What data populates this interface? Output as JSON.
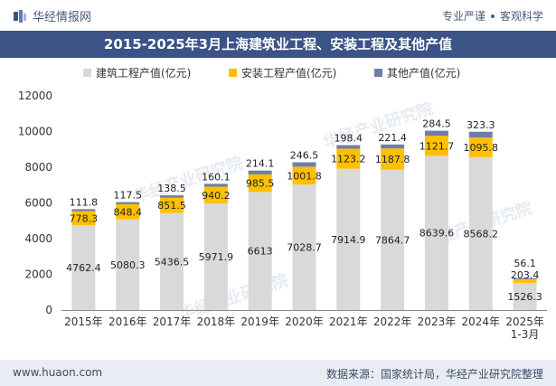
{
  "header": {
    "brand": "华经情报网",
    "tag1": "专业严谨",
    "tag2": "客观科学"
  },
  "colors": {
    "title_bg": "#3b5387",
    "construction": "#d9d9d9",
    "installation": "#ffc000",
    "other": "#6f7ea6"
  },
  "chart_data": {
    "type": "bar",
    "stacked": true,
    "title": "2015-2025年3月上海建筑业工程、安装工程及其他产值",
    "categories": [
      "2015年",
      "2016年",
      "2017年",
      "2018年",
      "2019年",
      "2020年",
      "2021年",
      "2022年",
      "2023年",
      "2024年",
      "2025年\n1-3月"
    ],
    "series": [
      {
        "name": "建筑工程产值(亿元)",
        "values": [
          4762.4,
          5080.3,
          5436.5,
          5971.9,
          6613,
          7028.7,
          7914.9,
          7864.7,
          8639.6,
          8568.2,
          1526.3
        ]
      },
      {
        "name": "安装工程产值(亿元)",
        "values": [
          778.3,
          848.4,
          851.5,
          940.2,
          985.5,
          1001.8,
          1123.2,
          1187.8,
          1121.7,
          1095.8,
          203.4
        ]
      },
      {
        "name": "其他产值(亿元)",
        "values": [
          111.8,
          117.5,
          138.5,
          160.1,
          214.1,
          246.5,
          198.4,
          221.4,
          284.5,
          323.3,
          56.1
        ]
      }
    ],
    "y_ticks": [
      0,
      2000,
      4000,
      6000,
      8000,
      10000,
      12000
    ],
    "ylim": [
      0,
      12000
    ],
    "legend_position": "top-center",
    "grid": false
  },
  "watermark": "华经产业研究院",
  "footer": {
    "website": "www.huaon.com",
    "source": "数据来源：国家统计局，华经产业研究院整理"
  }
}
